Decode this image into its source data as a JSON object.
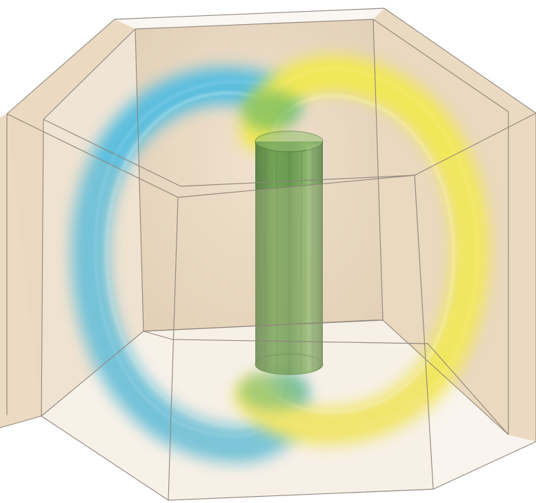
{
  "scene": {
    "background": "#ffffff",
    "prism": {
      "fill": "#ead7bd",
      "face_opacity": 0.72,
      "edge": "#8d8479"
    },
    "loops": [
      {
        "color": "#35b8e8"
      },
      {
        "color": "#f4ee3a"
      }
    ],
    "overlap_color": "#4cb24a",
    "cylinder": {
      "color": "#2f7d1f",
      "highlight": "#7ab85a",
      "edge": "#1f5b14"
    }
  }
}
